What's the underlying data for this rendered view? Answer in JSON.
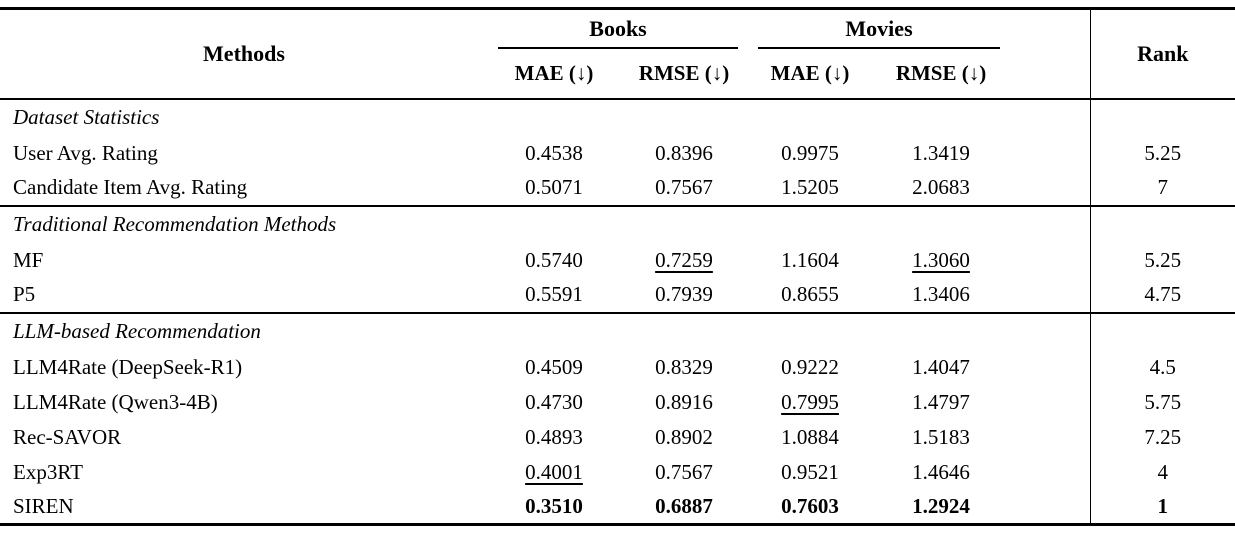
{
  "colors": {
    "background": "#ffffff",
    "text": "#000000",
    "rule": "#000000"
  },
  "header": {
    "methods": "Methods",
    "groups": [
      {
        "label": "Books"
      },
      {
        "label": "Movies"
      }
    ],
    "sub": [
      "MAE (↓)",
      "RMSE (↓)",
      "MAE (↓)",
      "RMSE (↓)"
    ],
    "rank": "Rank"
  },
  "sections": [
    {
      "title": "Dataset Statistics",
      "rows": [
        {
          "method": "User Avg. Rating",
          "cells": [
            {
              "v": "0.4538"
            },
            {
              "v": "0.8396"
            },
            {
              "v": "0.9975"
            },
            {
              "v": "1.3419"
            }
          ],
          "rank": {
            "v": "5.25"
          }
        },
        {
          "method": "Candidate Item Avg. Rating",
          "cells": [
            {
              "v": "0.5071"
            },
            {
              "v": "0.7567"
            },
            {
              "v": "1.5205"
            },
            {
              "v": "2.0683"
            }
          ],
          "rank": {
            "v": "7"
          }
        }
      ]
    },
    {
      "title": "Traditional Recommendation Methods",
      "rows": [
        {
          "method": "MF",
          "cells": [
            {
              "v": "0.5740"
            },
            {
              "v": "0.7259",
              "u": true
            },
            {
              "v": "1.1604"
            },
            {
              "v": "1.3060",
              "u": true
            }
          ],
          "rank": {
            "v": "5.25"
          }
        },
        {
          "method": "P5",
          "cells": [
            {
              "v": "0.5591"
            },
            {
              "v": "0.7939"
            },
            {
              "v": "0.8655"
            },
            {
              "v": "1.3406"
            }
          ],
          "rank": {
            "v": "4.75"
          }
        }
      ]
    },
    {
      "title": "LLM-based Recommendation",
      "rows": [
        {
          "method": "LLM4Rate (DeepSeek-R1)",
          "cells": [
            {
              "v": "0.4509"
            },
            {
              "v": "0.8329"
            },
            {
              "v": "0.9222"
            },
            {
              "v": "1.4047"
            }
          ],
          "rank": {
            "v": "4.5"
          }
        },
        {
          "method": "LLM4Rate (Qwen3-4B)",
          "cells": [
            {
              "v": "0.4730"
            },
            {
              "v": "0.8916"
            },
            {
              "v": "0.7995",
              "u": true
            },
            {
              "v": "1.4797"
            }
          ],
          "rank": {
            "v": "5.75"
          }
        },
        {
          "method": "Rec-SAVOR",
          "cells": [
            {
              "v": "0.4893"
            },
            {
              "v": "0.8902"
            },
            {
              "v": "1.0884"
            },
            {
              "v": "1.5183"
            }
          ],
          "rank": {
            "v": "7.25"
          }
        },
        {
          "method": "Exp3RT",
          "cells": [
            {
              "v": "0.4001",
              "u": true
            },
            {
              "v": "0.7567"
            },
            {
              "v": "0.9521"
            },
            {
              "v": "1.4646"
            }
          ],
          "rank": {
            "v": "4"
          }
        },
        {
          "method": "SIREN",
          "cells": [
            {
              "v": "0.3510",
              "b": true
            },
            {
              "v": "0.6887",
              "b": true
            },
            {
              "v": "0.7603",
              "b": true
            },
            {
              "v": "1.2924",
              "b": true
            }
          ],
          "rank": {
            "v": "1",
            "b": true
          }
        }
      ]
    }
  ]
}
